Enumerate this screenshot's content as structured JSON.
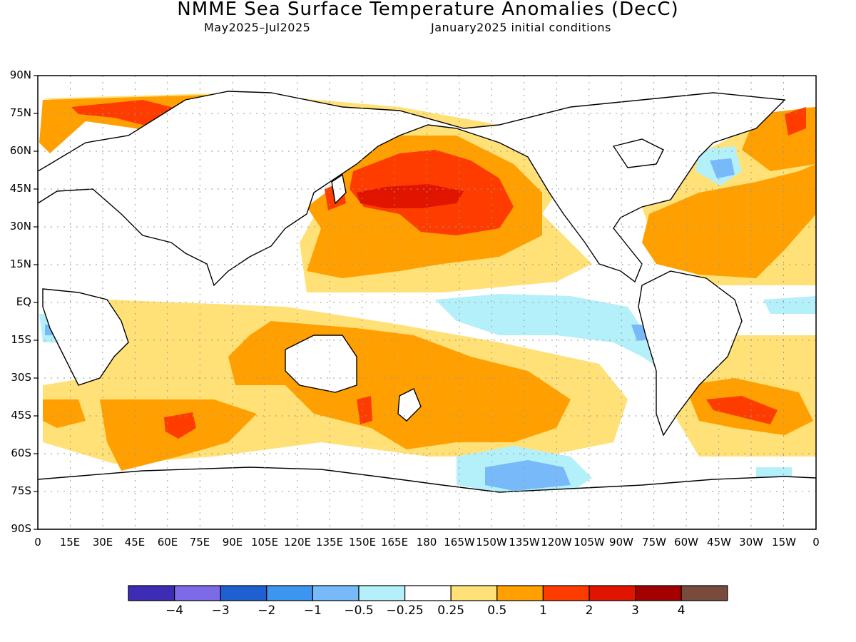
{
  "title": "NMME Sea Surface Temperature Anomalies (DecC)",
  "subtitle_left": "May2025–Jul2025",
  "subtitle_right": "January2025 initial conditions",
  "lat_labels": [
    "90N",
    "75N",
    "60N",
    "45N",
    "30N",
    "15N",
    "EQ",
    "15S",
    "30S",
    "45S",
    "60S",
    "75S",
    "90S"
  ],
  "lon_labels": [
    "0",
    "15E",
    "30E",
    "45E",
    "60E",
    "75E",
    "90E",
    "105E",
    "120E",
    "135E",
    "150E",
    "165E",
    "180",
    "165W",
    "150W",
    "135W",
    "120W",
    "105W",
    "90W",
    "75W",
    "60W",
    "45W",
    "30W",
    "15W",
    "0"
  ],
  "colorbar": {
    "colors": [
      "#3c2db4",
      "#7d6ae6",
      "#1e5fd2",
      "#3c96f0",
      "#78b9fa",
      "#b4f0fa",
      "#ffffff",
      "#ffe178",
      "#ffa000",
      "#ff3c00",
      "#e11400",
      "#a50000",
      "#784b3c"
    ],
    "labels": [
      "−4",
      "−3",
      "−2",
      "−1",
      "−0.5",
      "−0.25",
      "0.25",
      "0.5",
      "1",
      "2",
      "3",
      "4"
    ]
  },
  "colors": {
    "land_outline": "#000000",
    "grid": "#999999"
  }
}
